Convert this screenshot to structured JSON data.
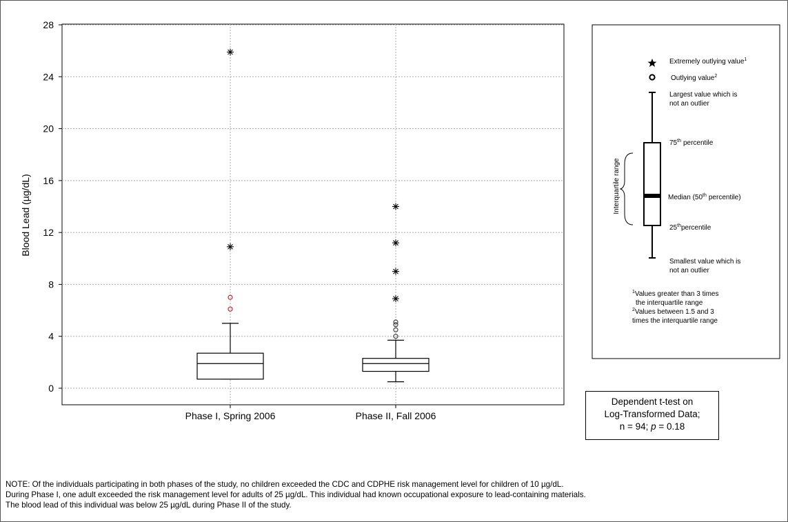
{
  "chart_data": {
    "type": "box",
    "ylabel": "Blood Lead (µg/dL)",
    "ylim": [
      0,
      28
    ],
    "yticks": [
      0,
      4,
      8,
      12,
      16,
      20,
      24,
      28
    ],
    "grid": true,
    "categories": [
      "Phase I, Spring 2006",
      "Phase II, Fall 2006"
    ],
    "boxes": [
      {
        "category": "Phase I, Spring 2006",
        "whisker_low": 0.7,
        "q1": 0.7,
        "median": 1.9,
        "q3": 2.7,
        "whisker_high": 5.0,
        "outliers": [
          6.1,
          7.0
        ],
        "extremes": [
          10.9,
          25.9
        ]
      },
      {
        "category": "Phase II, Fall 2006",
        "whisker_low": 0.5,
        "q1": 1.3,
        "median": 1.9,
        "q3": 2.3,
        "whisker_high": 3.7,
        "outliers": [
          4.0,
          4.5,
          4.9,
          5.1
        ],
        "extremes": [
          6.9,
          9.0,
          11.2,
          14.0
        ]
      }
    ],
    "legend": {
      "extreme": "Extremely outlying value",
      "extreme_sup": "1",
      "outlier": "Outlying value",
      "outlier_sup": "2",
      "largest_1": "Largest value which is",
      "largest_2": "not an outlier",
      "p75": "75",
      "p75_suffix": "percentile",
      "median": "Median (50",
      "median_suffix": "percentile)",
      "p25": "25",
      "p25_suffix": "percentile",
      "smallest_1": "Smallest value which is",
      "smallest_2": "not an outlier",
      "iqr_label": "Interquartile range",
      "th": "th",
      "foot1_sup": "1",
      "foot1_a": "Values greater than 3 times",
      "foot1_b": "the interquartile range",
      "foot2_sup": "2",
      "foot2_a": "Values between 1.5 and 3",
      "foot2_b": "times the interquartile range"
    }
  },
  "ttest": {
    "line1": "Dependent t-test on",
    "line2": "Log-Transformed Data;",
    "line3_pre": "n = 94; ",
    "line3_p": "p",
    "line3_post": " = 0.18"
  },
  "note": {
    "line1": "NOTE: Of the individuals participating in both phases of the study, no children exceeded the CDC and CDPHE risk management level for children of 10 µg/dL.",
    "line2": "During Phase I, one adult exceeded the risk management level for adults of 25 µg/dL.  This individual had known occupational exposure to lead-containing materials.",
    "line3": "The blood lead of this individual was below 25 µg/dL during Phase II of the study."
  },
  "colors": {
    "outlier": "#b03030",
    "grid": "#aaaaaa",
    "line": "#000000"
  }
}
